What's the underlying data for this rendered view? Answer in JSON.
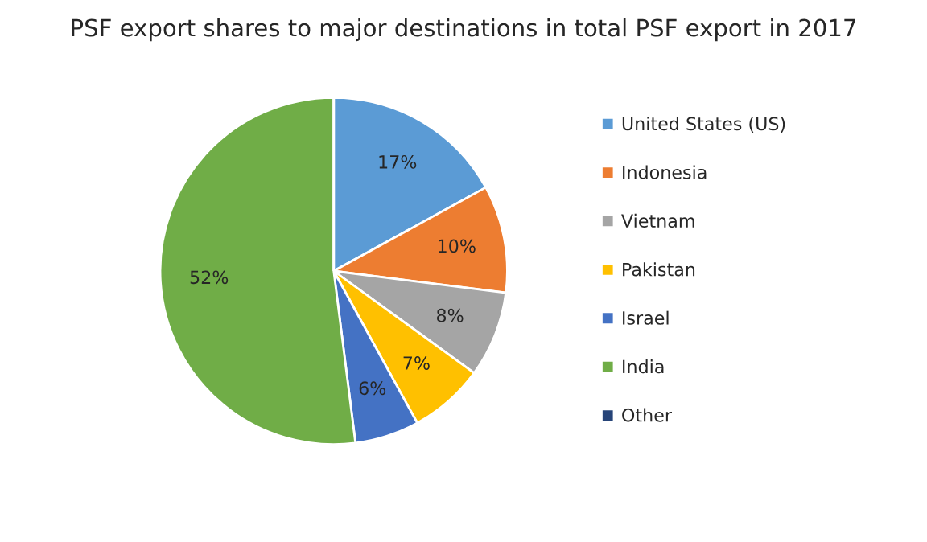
{
  "chart_data": {
    "type": "pie",
    "title": "PSF export shares to major destinations in total PSF export in 2017",
    "categories": [
      "United States (US)",
      "Indonesia",
      "Vietnam",
      "Pakistan",
      "Israel",
      "India",
      "Other"
    ],
    "values": [
      17,
      10,
      8,
      7,
      6,
      52,
      0
    ],
    "colors": [
      "#5b9bd5",
      "#ed7d31",
      "#a5a5a5",
      "#ffc000",
      "#4472c4",
      "#70ad47",
      "#264478"
    ],
    "value_labels": [
      "17%",
      "10%",
      "8%",
      "7%",
      "6%",
      "52%",
      null
    ],
    "legend": "right"
  }
}
